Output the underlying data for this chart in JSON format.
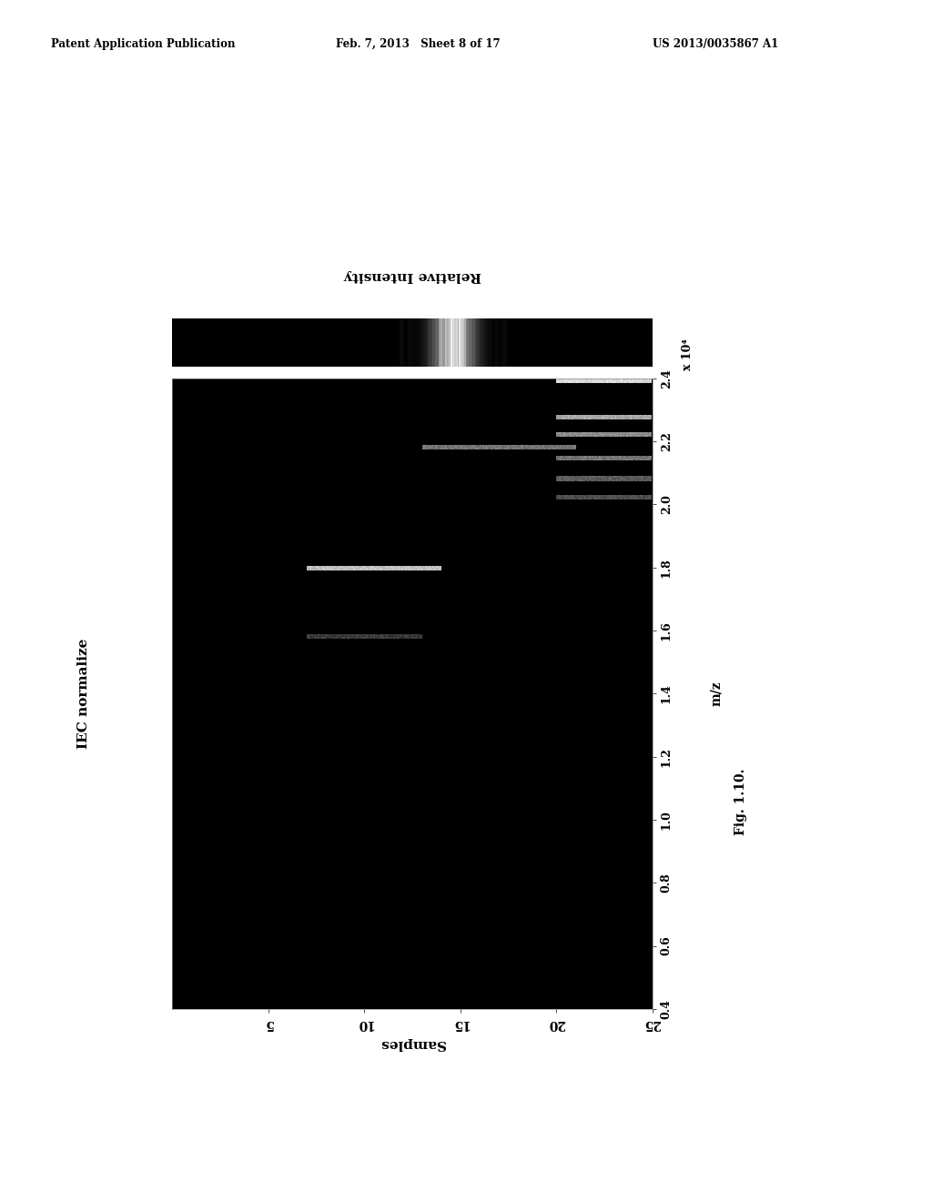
{
  "header_left": "Patent Application Publication",
  "header_center": "Feb. 7, 2013   Sheet 8 of 17",
  "header_right": "US 2013/0035867 A1",
  "figure_label": "Fig. 1.10.",
  "ylabel_left": "IEC normalize",
  "colorbar_label": "Relative Intensity",
  "xlabel": "Samples",
  "mz_label": "m/z",
  "x_ticks": [
    5,
    10,
    15,
    20,
    25
  ],
  "y_ticks": [
    0.4,
    0.6,
    0.8,
    1.0,
    1.2,
    1.4,
    1.6,
    1.8,
    2.0,
    2.2,
    2.4
  ],
  "y_scale_label": "x 10⁴",
  "bg_color": "#000000",
  "page_bg": "#ffffff",
  "lines": [
    {
      "x_start": 7,
      "x_end": 14,
      "y": 1.8,
      "brightness": 0.75,
      "thickness": 1
    },
    {
      "x_start": 13,
      "x_end": 21,
      "y": 2.18,
      "brightness": 0.45,
      "thickness": 1
    },
    {
      "x_start": 7,
      "x_end": 13,
      "y": 1.58,
      "brightness": 0.22,
      "thickness": 1
    },
    {
      "x_start": 20,
      "x_end": 25,
      "y": 2.4,
      "brightness": 0.85,
      "thickness": 2
    },
    {
      "x_start": 20,
      "x_end": 25,
      "y": 2.28,
      "brightness": 0.65,
      "thickness": 1
    },
    {
      "x_start": 20,
      "x_end": 25,
      "y": 2.22,
      "brightness": 0.55,
      "thickness": 1
    },
    {
      "x_start": 20,
      "x_end": 25,
      "y": 2.15,
      "brightness": 0.45,
      "thickness": 1
    },
    {
      "x_start": 20,
      "x_end": 25,
      "y": 2.08,
      "brightness": 0.35,
      "thickness": 1
    },
    {
      "x_start": 20,
      "x_end": 25,
      "y": 2.02,
      "brightness": 0.3,
      "thickness": 1
    }
  ]
}
